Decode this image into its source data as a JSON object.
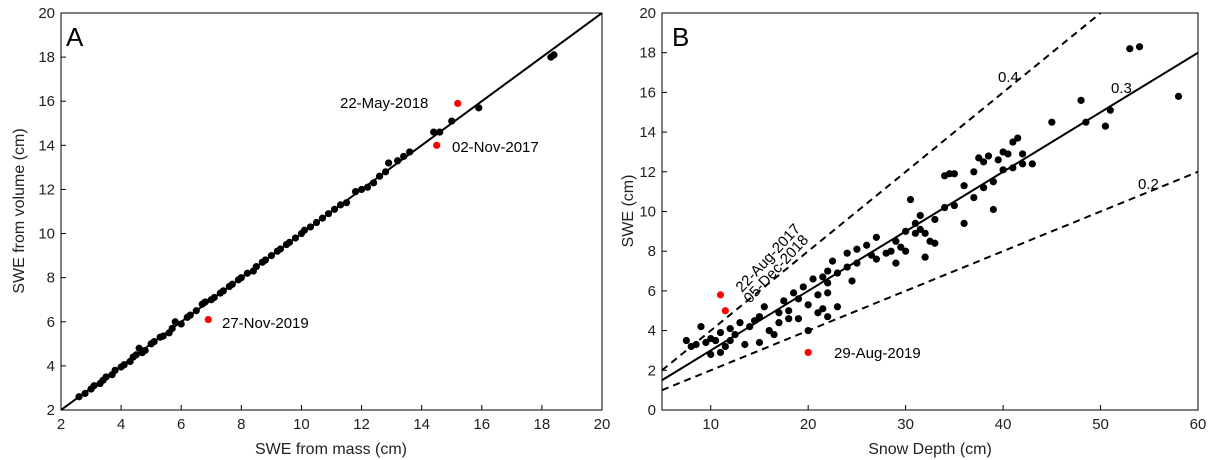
{
  "chart_data": [
    {
      "panel": "A",
      "type": "scatter",
      "xlabel": "SWE from mass (cm)",
      "ylabel": "SWE from volume (cm)",
      "xlim": [
        2,
        20
      ],
      "ylim": [
        2,
        20
      ],
      "xticks": [
        "2",
        "4",
        "6",
        "8",
        "10",
        "12",
        "14",
        "16",
        "18",
        "20"
      ],
      "yticks": [
        "2",
        "4",
        "6",
        "8",
        "10",
        "12",
        "14",
        "16",
        "18",
        "20"
      ],
      "lines": [
        {
          "style": "solid",
          "points": [
            [
              2,
              2
            ],
            [
              20,
              20
            ]
          ]
        }
      ],
      "series": [
        {
          "color": "#000000",
          "points": [
            [
              2.6,
              2.6
            ],
            [
              2.8,
              2.75
            ],
            [
              3.0,
              2.95
            ],
            [
              3.1,
              3.1
            ],
            [
              3.3,
              3.2
            ],
            [
              3.4,
              3.35
            ],
            [
              3.5,
              3.5
            ],
            [
              3.7,
              3.6
            ],
            [
              3.8,
              3.8
            ],
            [
              4.0,
              3.95
            ],
            [
              4.1,
              4.05
            ],
            [
              4.3,
              4.2
            ],
            [
              4.4,
              4.4
            ],
            [
              4.5,
              4.5
            ],
            [
              4.6,
              4.8
            ],
            [
              4.7,
              4.6
            ],
            [
              4.8,
              4.7
            ],
            [
              5.0,
              5.0
            ],
            [
              5.1,
              5.1
            ],
            [
              5.3,
              5.3
            ],
            [
              5.4,
              5.35
            ],
            [
              5.6,
              5.5
            ],
            [
              5.7,
              5.7
            ],
            [
              5.8,
              6.0
            ],
            [
              6.0,
              5.9
            ],
            [
              6.2,
              6.2
            ],
            [
              6.3,
              6.3
            ],
            [
              6.5,
              6.5
            ],
            [
              6.7,
              6.8
            ],
            [
              6.8,
              6.9
            ],
            [
              7.0,
              7.0
            ],
            [
              7.1,
              7.1
            ],
            [
              7.3,
              7.3
            ],
            [
              7.4,
              7.4
            ],
            [
              7.6,
              7.6
            ],
            [
              7.7,
              7.7
            ],
            [
              7.9,
              7.9
            ],
            [
              8.0,
              8.0
            ],
            [
              8.2,
              8.2
            ],
            [
              8.4,
              8.3
            ],
            [
              8.5,
              8.5
            ],
            [
              8.7,
              8.7
            ],
            [
              8.8,
              8.8
            ],
            [
              9.0,
              9.0
            ],
            [
              9.2,
              9.2
            ],
            [
              9.3,
              9.3
            ],
            [
              9.5,
              9.5
            ],
            [
              9.6,
              9.6
            ],
            [
              9.8,
              9.8
            ],
            [
              10.0,
              10.0
            ],
            [
              10.1,
              10.15
            ],
            [
              10.3,
              10.3
            ],
            [
              10.5,
              10.5
            ],
            [
              10.7,
              10.7
            ],
            [
              10.9,
              10.9
            ],
            [
              11.1,
              11.1
            ],
            [
              11.3,
              11.3
            ],
            [
              11.5,
              11.4
            ],
            [
              11.8,
              11.9
            ],
            [
              12.0,
              12.0
            ],
            [
              12.2,
              12.1
            ],
            [
              12.4,
              12.3
            ],
            [
              12.6,
              12.6
            ],
            [
              12.8,
              12.8
            ],
            [
              12.9,
              13.2
            ],
            [
              13.2,
              13.3
            ],
            [
              13.4,
              13.5
            ],
            [
              13.6,
              13.7
            ],
            [
              14.4,
              14.6
            ],
            [
              14.6,
              14.6
            ],
            [
              15.0,
              15.1
            ],
            [
              15.9,
              15.7
            ],
            [
              18.3,
              18.0
            ],
            [
              18.4,
              18.1
            ]
          ]
        },
        {
          "color": "#ff0000",
          "points": [
            [
              15.2,
              15.9
            ],
            [
              14.5,
              14.0
            ],
            [
              6.9,
              6.1
            ]
          ]
        }
      ],
      "annotations": [
        "22-May-2018",
        "02-Nov-2017",
        "27-Nov-2019"
      ]
    },
    {
      "panel": "B",
      "type": "scatter",
      "xlabel": "Snow Depth (cm)",
      "ylabel": "SWE (cm)",
      "xlim": [
        5,
        60
      ],
      "ylim": [
        0,
        20
      ],
      "xticks": [
        "10",
        "20",
        "30",
        "40",
        "50",
        "60"
      ],
      "yticks": [
        "0",
        "2",
        "4",
        "6",
        "8",
        "10",
        "12",
        "14",
        "16",
        "18",
        "20"
      ],
      "lines": [
        {
          "label": "0.3",
          "style": "solid",
          "points": [
            [
              5,
              1.5
            ],
            [
              60,
              18
            ]
          ]
        },
        {
          "label": "0.4",
          "style": "dashed",
          "points": [
            [
              5,
              2
            ],
            [
              50,
              20
            ]
          ]
        },
        {
          "label": "0.2",
          "style": "dashed",
          "points": [
            [
              5,
              1
            ],
            [
              60,
              12
            ]
          ]
        }
      ],
      "series": [
        {
          "color": "#000000",
          "points": [
            [
              7.5,
              3.5
            ],
            [
              8,
              3.2
            ],
            [
              8.5,
              3.3
            ],
            [
              9,
              4.2
            ],
            [
              9.5,
              3.4
            ],
            [
              10,
              2.8
            ],
            [
              10,
              3.6
            ],
            [
              10.5,
              3.5
            ],
            [
              11,
              2.9
            ],
            [
              11,
              3.9
            ],
            [
              11.5,
              3.2
            ],
            [
              12,
              3.5
            ],
            [
              12,
              4.1
            ],
            [
              12.5,
              3.8
            ],
            [
              13,
              4.4
            ],
            [
              13.5,
              3.3
            ],
            [
              14,
              4.2
            ],
            [
              14.5,
              4.5
            ],
            [
              15,
              3.4
            ],
            [
              15,
              4.7
            ],
            [
              15.5,
              5.2
            ],
            [
              16,
              4.0
            ],
            [
              16.5,
              3.8
            ],
            [
              17,
              4.9
            ],
            [
              17,
              4.4
            ],
            [
              17.5,
              5.5
            ],
            [
              18,
              5.0
            ],
            [
              18,
              4.6
            ],
            [
              18.5,
              5.9
            ],
            [
              19,
              5.6
            ],
            [
              19,
              4.6
            ],
            [
              19.5,
              6.2
            ],
            [
              20,
              4.0
            ],
            [
              20,
              5.3
            ],
            [
              20.5,
              6.6
            ],
            [
              21,
              5.8
            ],
            [
              21,
              4.9
            ],
            [
              21.5,
              6.7
            ],
            [
              21.5,
              5.1
            ],
            [
              22,
              7.0
            ],
            [
              22,
              6.4
            ],
            [
              22,
              5.9
            ],
            [
              22,
              4.7
            ],
            [
              22.5,
              7.5
            ],
            [
              23,
              6.9
            ],
            [
              23,
              5.2
            ],
            [
              24,
              7.9
            ],
            [
              24,
              7.2
            ],
            [
              24.5,
              6.5
            ],
            [
              25,
              8.1
            ],
            [
              25,
              7.4
            ],
            [
              26,
              8.3
            ],
            [
              26.5,
              7.8
            ],
            [
              27,
              8.7
            ],
            [
              27,
              7.6
            ],
            [
              28,
              7.9
            ],
            [
              28.5,
              8.0
            ],
            [
              29,
              8.5
            ],
            [
              29,
              7.4
            ],
            [
              29.5,
              8.2
            ],
            [
              30,
              9.0
            ],
            [
              30,
              8.0
            ],
            [
              30.5,
              10.6
            ],
            [
              31,
              9.4
            ],
            [
              31,
              8.9
            ],
            [
              31.5,
              9.8
            ],
            [
              31.5,
              9.1
            ],
            [
              32,
              8.9
            ],
            [
              32,
              7.7
            ],
            [
              32.5,
              8.5
            ],
            [
              33,
              9.6
            ],
            [
              33,
              8.4
            ],
            [
              34,
              10.2
            ],
            [
              34,
              11.8
            ],
            [
              34.5,
              11.9
            ],
            [
              35,
              11.9
            ],
            [
              35,
              10.3
            ],
            [
              36,
              11.3
            ],
            [
              36,
              9.4
            ],
            [
              37,
              12.0
            ],
            [
              37,
              10.7
            ],
            [
              37.5,
              12.7
            ],
            [
              38,
              12.5
            ],
            [
              38,
              11.2
            ],
            [
              38.5,
              12.8
            ],
            [
              39,
              11.5
            ],
            [
              39,
              10.1
            ],
            [
              39.5,
              12.6
            ],
            [
              40,
              13.0
            ],
            [
              40,
              12.1
            ],
            [
              40.5,
              12.9
            ],
            [
              41,
              13.5
            ],
            [
              41,
              12.2
            ],
            [
              41.5,
              13.7
            ],
            [
              42,
              12.9
            ],
            [
              42,
              12.4
            ],
            [
              43,
              12.4
            ],
            [
              45,
              14.5
            ],
            [
              48,
              15.6
            ],
            [
              48.5,
              14.5
            ],
            [
              50.5,
              14.3
            ],
            [
              51,
              15.1
            ],
            [
              53,
              18.2
            ],
            [
              54,
              18.3
            ],
            [
              58,
              15.8
            ]
          ]
        },
        {
          "color": "#ff0000",
          "points": [
            [
              11,
              5.8
            ],
            [
              11.5,
              5.0
            ],
            [
              20,
              2.9
            ]
          ]
        }
      ],
      "annotations": [
        "22-Aug-2017",
        "05-Dec-2018",
        "29-Aug-2019"
      ]
    }
  ],
  "panelA": {
    "letter": "A",
    "xlabel": "SWE from mass (cm)",
    "ylabel": "SWE from volume (cm)",
    "annotations": [
      "22-May-2018",
      "02-Nov-2017",
      "27-Nov-2019"
    ]
  },
  "panelB": {
    "letter": "B",
    "xlabel": "Snow Depth (cm)",
    "ylabel": "SWE (cm)",
    "line_labels": [
      "0.4",
      "0.3",
      "0.2"
    ],
    "annotations": [
      "22-Aug-2017",
      "05-Dec-2018",
      "29-Aug-2019"
    ]
  }
}
